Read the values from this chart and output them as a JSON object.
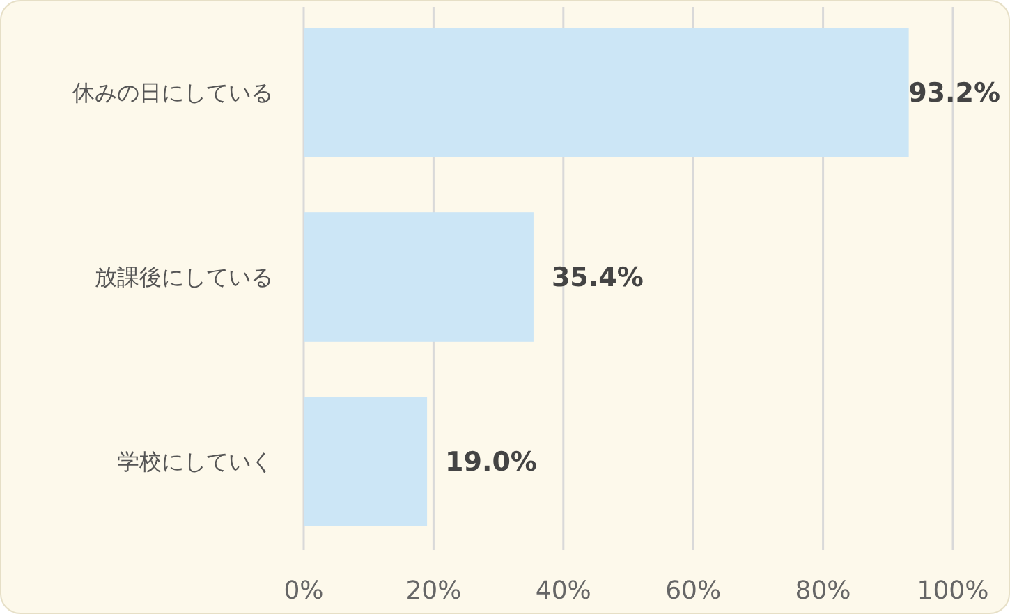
{
  "chart_data": {
    "type": "bar",
    "orientation": "horizontal",
    "categories": [
      "休みの日にしている",
      "放課後にしている",
      "学校にしていく"
    ],
    "values": [
      93.2,
      35.4,
      19.0
    ],
    "color": "#cce6f6",
    "value_labels": [
      "93.2%",
      "35.4%",
      "19.0%"
    ],
    "xlim": [
      0,
      100
    ],
    "xticks": [
      {
        "value": 0,
        "label": "0%"
      },
      {
        "value": 20,
        "label": "20%"
      },
      {
        "value": 40,
        "label": "40%"
      },
      {
        "value": 60,
        "label": "60%"
      },
      {
        "value": 80,
        "label": "80%"
      },
      {
        "value": 100,
        "label": "100%"
      }
    ],
    "grid": "x"
  }
}
